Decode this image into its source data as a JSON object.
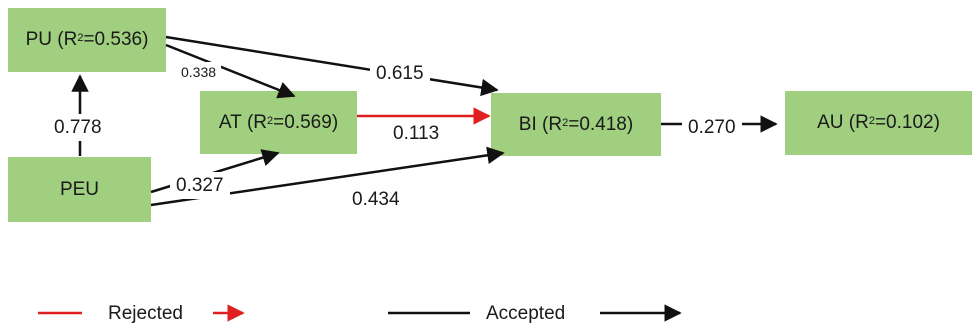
{
  "colors": {
    "node_fill": "#9fcf7f",
    "accepted": "#111111",
    "rejected": "#e02020"
  },
  "nodes": {
    "pu": {
      "name": "PU",
      "r2_prefix": "(R",
      "r2_sup": "2",
      "r2_value": "=0.536)"
    },
    "at": {
      "name": "AT",
      "r2_prefix": "(R",
      "r2_sup": "2",
      "r2_value": "=0.569)"
    },
    "bi": {
      "name": "BI",
      "r2_prefix": "(R",
      "r2_sup": "2",
      "r2_value": "=0.418)"
    },
    "au": {
      "name": "AU",
      "r2_prefix": "(R",
      "r2_sup": "2",
      "r2_value": "=0.102)"
    },
    "peu": {
      "name": "PEU"
    }
  },
  "paths": {
    "peu_pu": {
      "label": "0.778",
      "status": "accepted"
    },
    "pu_at": {
      "label": "0.338",
      "status": "accepted"
    },
    "pu_bi": {
      "label": "0.615",
      "status": "accepted"
    },
    "at_bi": {
      "label": "0.113",
      "status": "rejected"
    },
    "peu_at": {
      "label": "0.327",
      "status": "accepted"
    },
    "peu_bi": {
      "label": "0.434",
      "status": "accepted"
    },
    "bi_au": {
      "label": "0.270",
      "status": "accepted"
    }
  },
  "legend": {
    "rejected": "Rejected",
    "accepted": "Accepted"
  }
}
